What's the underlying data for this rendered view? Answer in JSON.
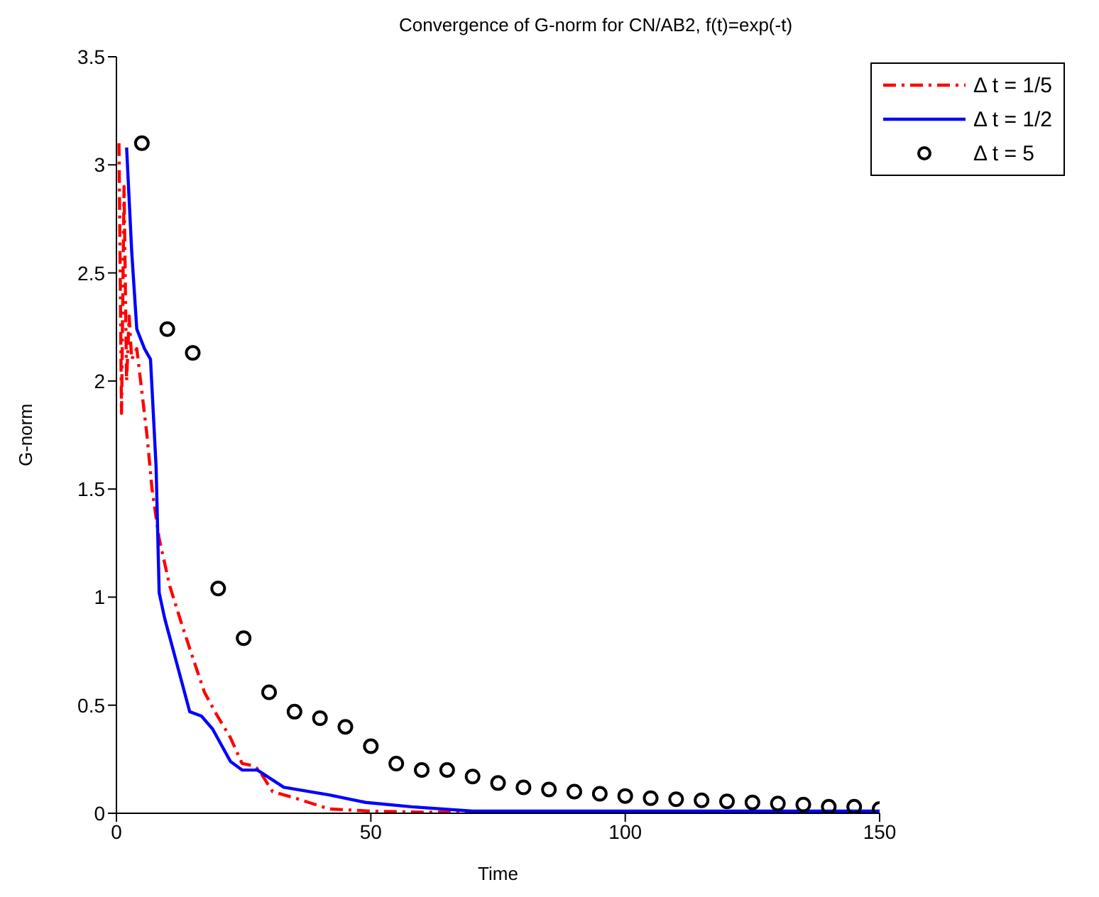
{
  "chart_data": {
    "type": "line",
    "title": "Convergence of G-norm for CN/AB2, f(t)=exp(-t)",
    "xlabel": "Time",
    "ylabel": "G-norm",
    "xlim": [
      0,
      150
    ],
    "xticks": [
      0,
      50,
      100,
      150
    ],
    "ylim": [
      0,
      3.5
    ],
    "yticks": [
      0,
      0.5,
      1,
      1.5,
      2,
      2.5,
      3,
      3.5
    ],
    "grid": false,
    "legend": "top right",
    "series": [
      {
        "name": "Δ t = 1/5",
        "color": "#ff0000",
        "line_style": "dashdot",
        "marker": "none",
        "x": [
          0.5,
          1,
          1.5,
          2,
          2.5,
          3,
          4,
          5,
          6,
          7,
          8.4,
          10.5,
          12.9,
          15,
          17.3,
          19.6,
          22.4,
          24.7,
          26.9,
          28,
          30.7,
          35.8,
          41.8,
          50,
          60,
          150
        ],
        "values": [
          3.1,
          1.85,
          2.9,
          2.0,
          2.3,
          2.1,
          2.15,
          1.95,
          1.75,
          1.5,
          1.27,
          1.05,
          0.87,
          0.72,
          0.56,
          0.46,
          0.35,
          0.23,
          0.22,
          0.2,
          0.1,
          0.065,
          0.02,
          0.01,
          0.005,
          0
        ]
      },
      {
        "name": "Δ t = 1/2",
        "color": "#0000ff",
        "line_style": "solid",
        "marker": "none",
        "x": [
          2,
          3,
          4,
          5.5,
          6.7,
          7.8,
          8.4,
          9.5,
          11.1,
          14.4,
          16.7,
          18.9,
          22.4,
          24.7,
          27.7,
          32.9,
          41.8,
          49,
          58,
          70,
          150
        ],
        "values": [
          3.08,
          2.6,
          2.24,
          2.15,
          2.1,
          1.6,
          1.02,
          0.9,
          0.76,
          0.47,
          0.45,
          0.39,
          0.24,
          0.2,
          0.2,
          0.12,
          0.085,
          0.05,
          0.03,
          0.01,
          0.01
        ]
      },
      {
        "name": "Δ t = 5",
        "type": "scatter",
        "color": "#000000",
        "marker": "circle",
        "x": [
          5,
          10,
          15,
          20,
          25,
          30,
          35,
          40,
          45,
          50,
          55,
          60,
          65,
          70,
          75,
          80,
          85,
          90,
          95,
          100,
          105,
          110,
          115,
          120,
          125,
          130,
          135,
          140,
          145,
          150
        ],
        "values": [
          3.1,
          2.24,
          2.13,
          1.04,
          0.81,
          0.56,
          0.47,
          0.44,
          0.4,
          0.31,
          0.23,
          0.2,
          0.2,
          0.17,
          0.14,
          0.12,
          0.11,
          0.1,
          0.09,
          0.08,
          0.07,
          0.065,
          0.06,
          0.055,
          0.05,
          0.045,
          0.04,
          0.03,
          0.03,
          0.02
        ]
      }
    ]
  }
}
